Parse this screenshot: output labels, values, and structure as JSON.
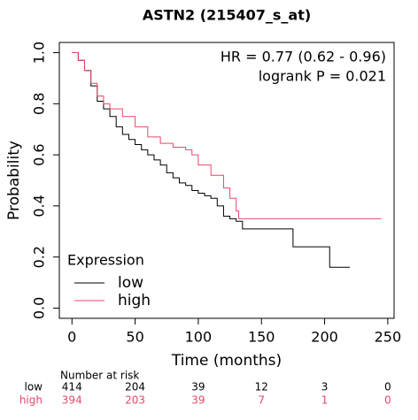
{
  "chart_data": {
    "type": "line",
    "title": "ASTN2 (215407_s_at)",
    "xlabel": "Time (months)",
    "ylabel": "Probability",
    "annotations": [
      "HR = 0.77 (0.62 - 0.96)",
      "logrank P = 0.021"
    ],
    "legend_title": "Expression",
    "xlim": [
      -10,
      255
    ],
    "ylim": [
      -0.04,
      1.04
    ],
    "xticks": [
      0,
      50,
      100,
      150,
      200,
      250
    ],
    "yticks": [
      {
        "value": 0,
        "label": "0.0"
      },
      0.2,
      0.4,
      0.6,
      0.8,
      {
        "value": 1,
        "label": "1.0"
      }
    ],
    "step": true,
    "series": [
      {
        "name": "low",
        "color": "#000000",
        "x": [
          0,
          5,
          10,
          15,
          20,
          25,
          30,
          35,
          40,
          45,
          50,
          55,
          60,
          65,
          70,
          75,
          80,
          85,
          90,
          95,
          100,
          105,
          110,
          115,
          120,
          125,
          130,
          135,
          175,
          204,
          220
        ],
        "values": [
          1.0,
          0.97,
          0.93,
          0.87,
          0.81,
          0.78,
          0.75,
          0.71,
          0.68,
          0.66,
          0.64,
          0.62,
          0.6,
          0.58,
          0.56,
          0.53,
          0.51,
          0.49,
          0.48,
          0.46,
          0.45,
          0.44,
          0.43,
          0.4,
          0.36,
          0.35,
          0.34,
          0.31,
          0.24,
          0.16,
          0.16
        ]
      },
      {
        "name": "high",
        "color": "#e8476a",
        "x": [
          0,
          5,
          10,
          15,
          20,
          25,
          30,
          40,
          50,
          60,
          70,
          80,
          90,
          95,
          100,
          110,
          120,
          125,
          130,
          132,
          245
        ],
        "values": [
          1.0,
          0.97,
          0.93,
          0.88,
          0.83,
          0.8,
          0.78,
          0.75,
          0.71,
          0.67,
          0.645,
          0.63,
          0.62,
          0.6,
          0.56,
          0.52,
          0.47,
          0.43,
          0.38,
          0.35,
          0.35
        ]
      }
    ],
    "risk_table": {
      "title": "Number at risk",
      "rows": [
        {
          "name": "low",
          "color": "#000000",
          "values": [
            414,
            204,
            39,
            12,
            3,
            0
          ]
        },
        {
          "name": "high",
          "color": "#e8476a",
          "values": [
            394,
            203,
            39,
            7,
            1,
            0
          ]
        }
      ]
    }
  }
}
